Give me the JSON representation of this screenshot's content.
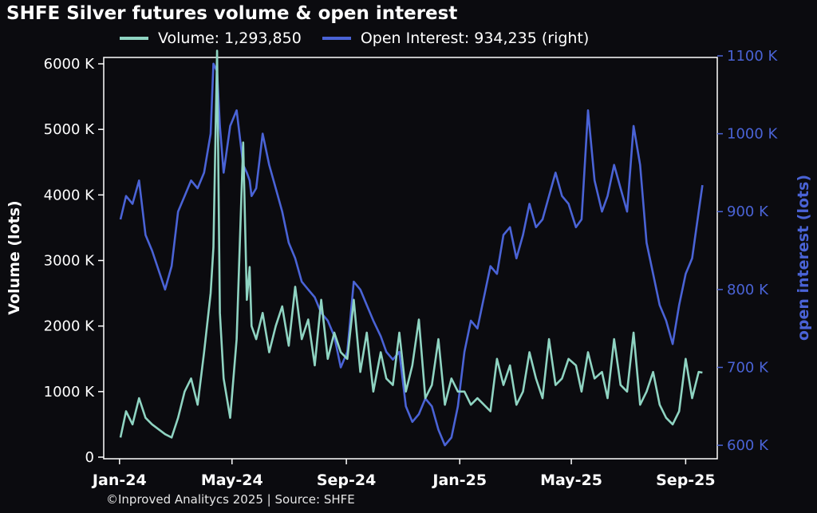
{
  "chart_data": {
    "type": "line",
    "title": "SHFE Silver futures volume & open interest",
    "xlabel": "",
    "ylabel": "Volume (lots)",
    "ylabel_right": "open interest (lots)",
    "source": "©Inproved Analitycs 2025 | Source: SHFE",
    "x_ticks": [
      "Jan-24",
      "May-24",
      "Sep-24",
      "Jan-25",
      "May-25",
      "Sep-25"
    ],
    "y_ticks_left": [
      "0",
      "1000 K",
      "2000 K",
      "3000 K",
      "4000 K",
      "5000 K",
      "6000 K"
    ],
    "y_ticks_right": [
      "600 K",
      "700 K",
      "800 K",
      "900 K",
      "1000 K",
      "1100 K"
    ],
    "ylim": [
      0,
      6000
    ],
    "ylim_right": [
      595,
      1100
    ],
    "legend_position": "top",
    "grid": false,
    "series": [
      {
        "name": "Volume: 1,293,850",
        "axis": "left",
        "color": "#8fd4c2",
        "x": [
          "2024-01-02",
          "2024-01-08",
          "2024-01-15",
          "2024-01-22",
          "2024-01-29",
          "2024-02-05",
          "2024-02-19",
          "2024-02-26",
          "2024-03-04",
          "2024-03-11",
          "2024-03-18",
          "2024-03-25",
          "2024-04-01",
          "2024-04-08",
          "2024-04-11",
          "2024-04-15",
          "2024-04-18",
          "2024-04-22",
          "2024-04-29",
          "2024-05-06",
          "2024-05-13",
          "2024-05-17",
          "2024-05-20",
          "2024-05-22",
          "2024-05-27",
          "2024-06-03",
          "2024-06-10",
          "2024-06-17",
          "2024-06-24",
          "2024-07-01",
          "2024-07-08",
          "2024-07-15",
          "2024-07-22",
          "2024-07-29",
          "2024-08-05",
          "2024-08-12",
          "2024-08-19",
          "2024-08-26",
          "2024-09-02",
          "2024-09-09",
          "2024-09-16",
          "2024-09-23",
          "2024-09-30",
          "2024-10-08",
          "2024-10-14",
          "2024-10-21",
          "2024-10-28",
          "2024-11-04",
          "2024-11-11",
          "2024-11-18",
          "2024-11-25",
          "2024-12-02",
          "2024-12-09",
          "2024-12-16",
          "2024-12-23",
          "2024-12-30",
          "2025-01-06",
          "2025-01-13",
          "2025-01-20",
          "2025-02-03",
          "2025-02-10",
          "2025-02-17",
          "2025-02-24",
          "2025-03-03",
          "2025-03-10",
          "2025-03-17",
          "2025-03-24",
          "2025-03-31",
          "2025-04-07",
          "2025-04-14",
          "2025-04-21",
          "2025-04-28",
          "2025-05-06",
          "2025-05-12",
          "2025-05-19",
          "2025-05-26",
          "2025-06-03",
          "2025-06-09",
          "2025-06-16",
          "2025-06-23",
          "2025-06-30",
          "2025-07-07",
          "2025-07-14",
          "2025-07-21",
          "2025-07-28",
          "2025-08-04",
          "2025-08-11",
          "2025-08-18",
          "2025-08-25",
          "2025-09-01",
          "2025-09-08",
          "2025-09-15",
          "2025-09-19"
        ],
        "values": [
          300,
          700,
          500,
          900,
          600,
          500,
          350,
          300,
          600,
          1000,
          1200,
          800,
          1600,
          2500,
          3200,
          6200,
          2200,
          1200,
          600,
          1800,
          4800,
          2400,
          2900,
          2000,
          1800,
          2200,
          1600,
          2000,
          2300,
          1700,
          2600,
          1800,
          2100,
          1400,
          2400,
          1500,
          1900,
          1600,
          1500,
          2400,
          1300,
          1900,
          1000,
          1600,
          1200,
          1100,
          1900,
          1000,
          1400,
          2100,
          900,
          1100,
          1800,
          800,
          1200,
          1000,
          1000,
          800,
          900,
          700,
          1500,
          1100,
          1400,
          800,
          1000,
          1600,
          1200,
          900,
          1800,
          1100,
          1200,
          1500,
          1400,
          1000,
          1600,
          1200,
          1300,
          900,
          1800,
          1100,
          1000,
          1900,
          800,
          1000,
          1300,
          800,
          600,
          500,
          700,
          1500,
          900,
          1300,
          1290
        ]
      },
      {
        "name": "Open Interest: 934,235 (right)",
        "axis": "right",
        "color": "#4a63d6",
        "x": [
          "2024-01-02",
          "2024-01-08",
          "2024-01-15",
          "2024-01-22",
          "2024-01-29",
          "2024-02-05",
          "2024-02-19",
          "2024-02-26",
          "2024-03-04",
          "2024-03-11",
          "2024-03-18",
          "2024-03-25",
          "2024-04-01",
          "2024-04-08",
          "2024-04-11",
          "2024-04-15",
          "2024-04-18",
          "2024-04-22",
          "2024-04-29",
          "2024-05-06",
          "2024-05-13",
          "2024-05-17",
          "2024-05-20",
          "2024-05-22",
          "2024-05-27",
          "2024-06-03",
          "2024-06-10",
          "2024-06-17",
          "2024-06-24",
          "2024-07-01",
          "2024-07-08",
          "2024-07-15",
          "2024-07-22",
          "2024-07-29",
          "2024-08-05",
          "2024-08-12",
          "2024-08-19",
          "2024-08-26",
          "2024-09-02",
          "2024-09-09",
          "2024-09-16",
          "2024-09-23",
          "2024-09-30",
          "2024-10-08",
          "2024-10-14",
          "2024-10-21",
          "2024-10-28",
          "2024-11-04",
          "2024-11-11",
          "2024-11-18",
          "2024-11-25",
          "2024-12-02",
          "2024-12-09",
          "2024-12-16",
          "2024-12-23",
          "2024-12-30",
          "2025-01-06",
          "2025-01-13",
          "2025-01-20",
          "2025-02-03",
          "2025-02-10",
          "2025-02-17",
          "2025-02-24",
          "2025-03-03",
          "2025-03-10",
          "2025-03-17",
          "2025-03-24",
          "2025-03-31",
          "2025-04-07",
          "2025-04-14",
          "2025-04-21",
          "2025-04-28",
          "2025-05-06",
          "2025-05-12",
          "2025-05-19",
          "2025-05-26",
          "2025-06-03",
          "2025-06-09",
          "2025-06-16",
          "2025-06-23",
          "2025-06-30",
          "2025-07-07",
          "2025-07-14",
          "2025-07-21",
          "2025-07-28",
          "2025-08-04",
          "2025-08-11",
          "2025-08-18",
          "2025-08-25",
          "2025-09-01",
          "2025-09-08",
          "2025-09-15",
          "2025-09-19"
        ],
        "values": [
          890,
          920,
          910,
          940,
          870,
          850,
          800,
          830,
          900,
          920,
          940,
          930,
          950,
          1000,
          1090,
          1080,
          1010,
          950,
          1010,
          1030,
          960,
          950,
          940,
          920,
          930,
          1000,
          960,
          930,
          900,
          860,
          840,
          810,
          800,
          790,
          770,
          760,
          740,
          700,
          720,
          810,
          800,
          780,
          760,
          740,
          720,
          710,
          720,
          650,
          630,
          640,
          660,
          650,
          620,
          600,
          610,
          650,
          720,
          760,
          750,
          830,
          820,
          870,
          880,
          840,
          870,
          910,
          880,
          890,
          920,
          950,
          920,
          910,
          880,
          890,
          1030,
          940,
          900,
          920,
          960,
          930,
          900,
          1010,
          960,
          860,
          820,
          780,
          760,
          730,
          780,
          820,
          840,
          900,
          934
        ]
      }
    ]
  }
}
